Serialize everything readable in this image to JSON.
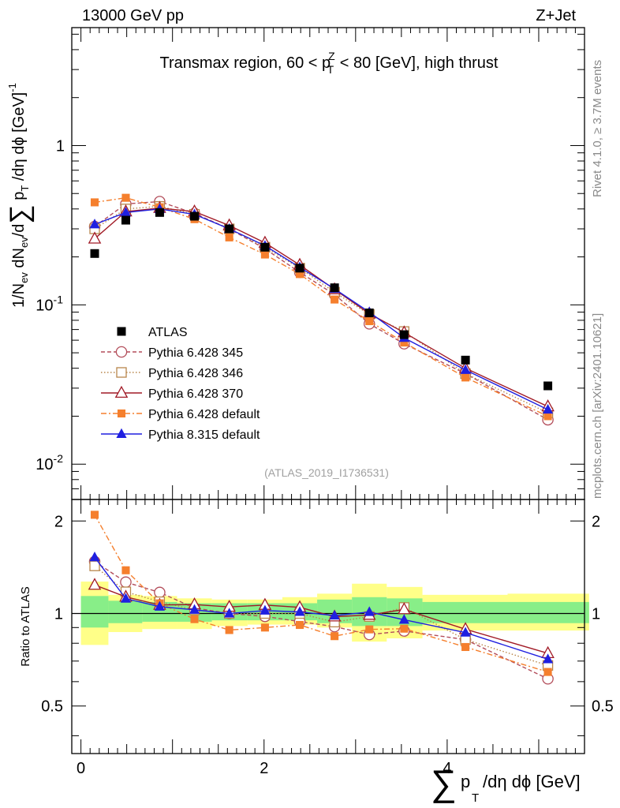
{
  "header": {
    "left": "13000 GeV pp",
    "right": "Z+Jet"
  },
  "side_labels": {
    "rivet": "Rivet 4.1.0, ≥ 3.7M events",
    "mcplots": "mcplots.cern.ch [arXiv:2401.10621]"
  },
  "analysis_id": "(ATLAS_2019_I1736531)",
  "chart_data": {
    "type": "line",
    "title": "Transmax region, 60 < p_T^Z < 80 [GeV], high thrust",
    "title_parts": {
      "pre": "Transmax region, 60 < p",
      "sup": "Z",
      "sub": "T",
      "post": " < 80 [GeV], high thrust"
    },
    "xlabel": "∑ p_T /dη dϕ [GeV]",
    "xlabel_parts": {
      "sigma": "∑",
      "p": "p",
      "sub": "T",
      "rest": "/dη dϕ [GeV]"
    },
    "ylabel": "1/N_ev dN_ev/d∑ p_T /dη dϕ [GeV]^-1",
    "ratio_ylabel": "Ratio to ATLAS",
    "xlim": [
      -0.1,
      5.5
    ],
    "ylim": [
      0.006,
      5.5
    ],
    "yscale": "log",
    "ratio_ylim": [
      0.35,
      2.35
    ],
    "ratio_yscale": "log",
    "x_ticks": [
      0,
      2,
      4
    ],
    "y_tick_labels": [
      "10^-2",
      "10^-1",
      "1"
    ],
    "ratio_ticks": [
      0.5,
      1,
      2
    ],
    "bin_edges": [
      0,
      0.3,
      0.67,
      1.05,
      1.43,
      1.82,
      2.2,
      2.58,
      2.96,
      3.34,
      3.73,
      4.66,
      5.55
    ],
    "x": [
      0.15,
      0.49,
      0.86,
      1.24,
      1.62,
      2.01,
      2.39,
      2.77,
      3.15,
      3.53,
      4.2,
      5.1
    ],
    "data": {
      "name": "ATLAS",
      "values": [
        0.21,
        0.34,
        0.38,
        0.36,
        0.3,
        0.23,
        0.17,
        0.128,
        0.089,
        0.065,
        0.045,
        0.031
      ]
    },
    "band_yellow": [
      [
        0.79,
        1.27
      ],
      [
        0.87,
        1.15
      ],
      [
        0.89,
        1.14
      ],
      [
        0.89,
        1.12
      ],
      [
        0.91,
        1.11
      ],
      [
        0.92,
        1.11
      ],
      [
        0.92,
        1.13
      ],
      [
        0.9,
        1.16
      ],
      [
        0.81,
        1.25
      ],
      [
        0.83,
        1.22
      ],
      [
        0.88,
        1.15
      ],
      [
        0.88,
        1.16
      ]
    ],
    "band_green": [
      [
        0.9,
        1.14
      ],
      [
        0.93,
        1.1
      ],
      [
        0.94,
        1.09
      ],
      [
        0.94,
        1.08
      ],
      [
        0.95,
        1.08
      ],
      [
        0.95,
        1.08
      ],
      [
        0.95,
        1.08
      ],
      [
        0.93,
        1.11
      ],
      [
        0.91,
        1.13
      ],
      [
        0.91,
        1.12
      ],
      [
        0.93,
        1.09
      ],
      [
        0.93,
        1.09
      ]
    ],
    "series": [
      {
        "name": "Pythia 6.428 345",
        "color": "#b34d5a",
        "dash": "5,3",
        "marker": "circle-open",
        "values": [
          0.31,
          0.43,
          0.445,
          0.375,
          0.3,
          0.225,
          0.16,
          0.116,
          0.076,
          0.057,
          0.037,
          0.019
        ]
      },
      {
        "name": "Pythia 6.428 346",
        "color": "#b8864b",
        "dash": "1.5,2.5",
        "marker": "square-open",
        "values": [
          0.3,
          0.4,
          0.415,
          0.37,
          0.3,
          0.23,
          0.17,
          0.12,
          0.087,
          0.068,
          0.037,
          0.021
        ]
      },
      {
        "name": "Pythia 6.428 370",
        "color": "#a11a26",
        "dash": "",
        "marker": "triangle-open",
        "values": [
          0.26,
          0.385,
          0.405,
          0.385,
          0.315,
          0.245,
          0.178,
          0.125,
          0.088,
          0.067,
          0.04,
          0.023
        ]
      },
      {
        "name": "Pythia 6.428 default",
        "color": "#f57f2d",
        "dash": "7,3,2,3",
        "marker": "square-filled",
        "values": [
          0.44,
          0.47,
          0.41,
          0.345,
          0.265,
          0.207,
          0.156,
          0.108,
          0.079,
          0.058,
          0.035,
          0.02
        ]
      },
      {
        "name": "Pythia 8.315 default",
        "color": "#1f1fe0",
        "dash": "",
        "marker": "triangle-filled",
        "values": [
          0.32,
          0.38,
          0.4,
          0.37,
          0.3,
          0.235,
          0.172,
          0.126,
          0.09,
          0.062,
          0.039,
          0.022
        ]
      }
    ]
  }
}
